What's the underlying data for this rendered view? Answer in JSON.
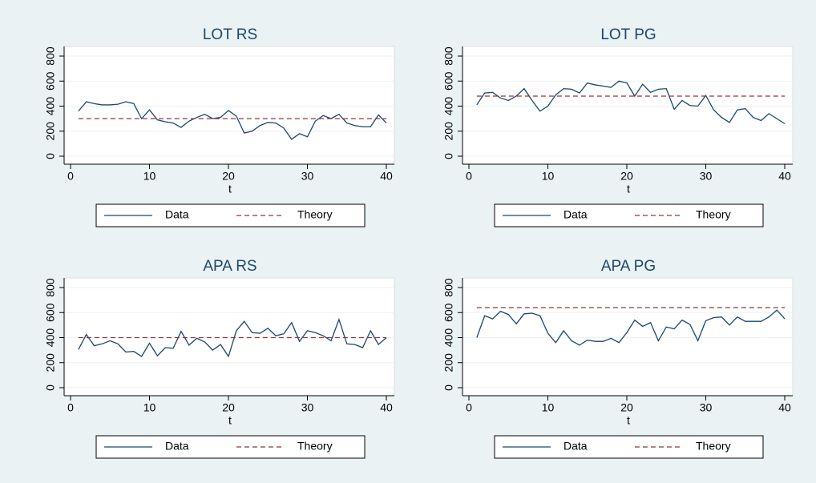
{
  "chart_data": [
    {
      "type": "line",
      "title": "LOT RS",
      "xlabel": "t",
      "xlim": [
        0,
        40
      ],
      "xticks": [
        0,
        10,
        20,
        30,
        40
      ],
      "ylim": [
        0,
        800
      ],
      "yticks": [
        0,
        200,
        400,
        600,
        800
      ],
      "grid": true,
      "series": [
        {
          "name": "Data",
          "color": "#1a476f",
          "dash": false,
          "x": [
            1,
            2,
            3,
            4,
            5,
            6,
            7,
            8,
            9,
            10,
            11,
            12,
            13,
            14,
            15,
            16,
            17,
            18,
            19,
            20,
            21,
            22,
            23,
            24,
            25,
            26,
            27,
            28,
            29,
            30,
            31,
            32,
            33,
            34,
            35,
            36,
            37,
            38,
            39,
            40
          ],
          "values": [
            360,
            435,
            420,
            410,
            410,
            415,
            435,
            420,
            300,
            370,
            290,
            275,
            265,
            230,
            280,
            310,
            335,
            300,
            310,
            365,
            320,
            185,
            200,
            245,
            270,
            265,
            225,
            135,
            180,
            155,
            280,
            325,
            300,
            335,
            265,
            245,
            235,
            235,
            330,
            265
          ]
        },
        {
          "name": "Theory",
          "color": "#90353b",
          "dash": true,
          "x": [
            1,
            40
          ],
          "values": [
            300,
            300
          ]
        }
      ]
    },
    {
      "type": "line",
      "title": "LOT PG",
      "xlabel": "t",
      "xlim": [
        0,
        40
      ],
      "xticks": [
        0,
        10,
        20,
        30,
        40
      ],
      "ylim": [
        0,
        800
      ],
      "yticks": [
        0,
        200,
        400,
        600,
        800
      ],
      "grid": true,
      "series": [
        {
          "name": "Data",
          "color": "#1a476f",
          "dash": false,
          "x": [
            1,
            2,
            3,
            4,
            5,
            6,
            7,
            8,
            9,
            10,
            11,
            12,
            13,
            14,
            15,
            16,
            17,
            18,
            19,
            20,
            21,
            22,
            23,
            24,
            25,
            26,
            27,
            28,
            29,
            30,
            31,
            32,
            33,
            34,
            35,
            36,
            37,
            38,
            39,
            40
          ],
          "values": [
            410,
            505,
            510,
            465,
            445,
            480,
            540,
            445,
            360,
            400,
            490,
            540,
            535,
            505,
            585,
            570,
            560,
            550,
            600,
            585,
            480,
            575,
            510,
            535,
            540,
            375,
            445,
            405,
            400,
            485,
            370,
            310,
            270,
            370,
            380,
            310,
            285,
            340,
            300,
            260
          ]
        },
        {
          "name": "Theory",
          "color": "#90353b",
          "dash": true,
          "x": [
            1,
            40
          ],
          "values": [
            480,
            480
          ]
        }
      ]
    },
    {
      "type": "line",
      "title": "APA RS",
      "xlabel": "t",
      "xlim": [
        0,
        40
      ],
      "xticks": [
        0,
        10,
        20,
        30,
        40
      ],
      "ylim": [
        0,
        800
      ],
      "yticks": [
        0,
        200,
        400,
        600,
        800
      ],
      "grid": true,
      "series": [
        {
          "name": "Data",
          "color": "#1a476f",
          "dash": false,
          "x": [
            1,
            2,
            3,
            4,
            5,
            6,
            7,
            8,
            9,
            10,
            11,
            12,
            13,
            14,
            15,
            16,
            17,
            18,
            19,
            20,
            21,
            22,
            23,
            24,
            25,
            26,
            27,
            28,
            29,
            30,
            31,
            32,
            33,
            34,
            35,
            36,
            37,
            38,
            39,
            40
          ],
          "values": [
            305,
            425,
            335,
            350,
            375,
            350,
            285,
            290,
            250,
            355,
            255,
            320,
            315,
            450,
            340,
            395,
            365,
            300,
            345,
            250,
            455,
            530,
            440,
            435,
            475,
            415,
            430,
            520,
            370,
            455,
            440,
            415,
            375,
            545,
            350,
            345,
            320,
            455,
            345,
            400
          ]
        },
        {
          "name": "Theory",
          "color": "#90353b",
          "dash": true,
          "x": [
            1,
            40
          ],
          "values": [
            400,
            400
          ]
        }
      ]
    },
    {
      "type": "line",
      "title": "APA PG",
      "xlabel": "t",
      "xlim": [
        0,
        40
      ],
      "xticks": [
        0,
        10,
        20,
        30,
        40
      ],
      "ylim": [
        0,
        800
      ],
      "yticks": [
        0,
        200,
        400,
        600,
        800
      ],
      "grid": true,
      "series": [
        {
          "name": "Data",
          "color": "#1a476f",
          "dash": false,
          "x": [
            1,
            2,
            3,
            4,
            5,
            6,
            7,
            8,
            9,
            10,
            11,
            12,
            13,
            14,
            15,
            16,
            17,
            18,
            19,
            20,
            21,
            22,
            23,
            24,
            25,
            26,
            27,
            28,
            29,
            30,
            31,
            32,
            33,
            34,
            35,
            36,
            37,
            38,
            39,
            40
          ],
          "values": [
            400,
            575,
            550,
            610,
            585,
            510,
            590,
            595,
            575,
            435,
            360,
            455,
            375,
            340,
            380,
            370,
            370,
            395,
            360,
            440,
            540,
            490,
            520,
            375,
            485,
            470,
            540,
            505,
            375,
            535,
            560,
            565,
            500,
            565,
            530,
            530,
            530,
            565,
            620,
            550
          ]
        },
        {
          "name": "Theory",
          "color": "#90353b",
          "dash": true,
          "x": [
            1,
            40
          ],
          "values": [
            640,
            640
          ]
        }
      ]
    }
  ]
}
